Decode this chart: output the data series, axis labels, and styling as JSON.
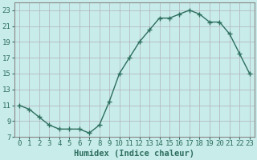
{
  "x": [
    0,
    1,
    2,
    3,
    4,
    5,
    6,
    7,
    8,
    9,
    10,
    11,
    12,
    13,
    14,
    15,
    16,
    17,
    18,
    19,
    20,
    21,
    22,
    23
  ],
  "y": [
    11,
    10.5,
    9.5,
    8.5,
    8,
    8,
    8,
    7.5,
    8.5,
    11.5,
    15,
    17,
    19,
    20.5,
    22,
    22,
    22.5,
    23,
    22.5,
    21.5,
    21.5,
    20,
    17.5,
    15
  ],
  "line_color": "#2d6e5e",
  "marker": "+",
  "marker_size": 4,
  "bg_color": "#c8ecea",
  "grid_color": "#b0b0b8",
  "xlabel": "Humidex (Indice chaleur)",
  "xlim": [
    -0.5,
    23.5
  ],
  "ylim": [
    7,
    24
  ],
  "yticks": [
    7,
    9,
    11,
    13,
    15,
    17,
    19,
    21,
    23
  ],
  "xticks": [
    0,
    1,
    2,
    3,
    4,
    5,
    6,
    7,
    8,
    9,
    10,
    11,
    12,
    13,
    14,
    15,
    16,
    17,
    18,
    19,
    20,
    21,
    22,
    23
  ],
  "xlabel_fontsize": 7.5,
  "tick_fontsize": 6.5
}
